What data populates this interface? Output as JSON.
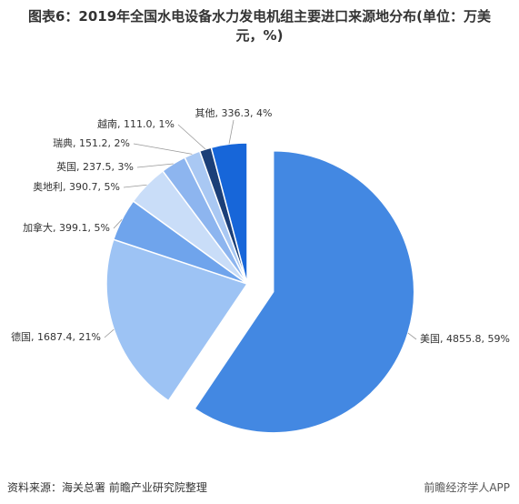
{
  "chart_data": {
    "type": "pie",
    "title": "图表6：2019年全国水电设备水力发电机组主要进口来源地分布(单位：万美元，%)",
    "values": [
      4855.8,
      1687.4,
      399.1,
      390.7,
      237.5,
      151.2,
      111.0,
      336.3
    ],
    "value_labels": [
      "美国, 4855.8, 59%",
      "德国, 1687.4, 21%",
      "加拿大, 399.1, 5%",
      "奥地利, 390.7, 5%",
      "英国, 237.5, 3%",
      "瑞典, 151.2, 2%",
      "越南, 111.0, 1%",
      "其他, 336.3, 4%"
    ],
    "colors": [
      "#4388e2",
      "#9dc3f4",
      "#6fa4ec",
      "#c9ddf8",
      "#8db5ef",
      "#a9c8f3",
      "#1b3f78",
      "#1766d9"
    ],
    "source": "资料来源：海关总署 前瞻产业研究院整理",
    "watermark": "前瞻经济学人APP"
  }
}
